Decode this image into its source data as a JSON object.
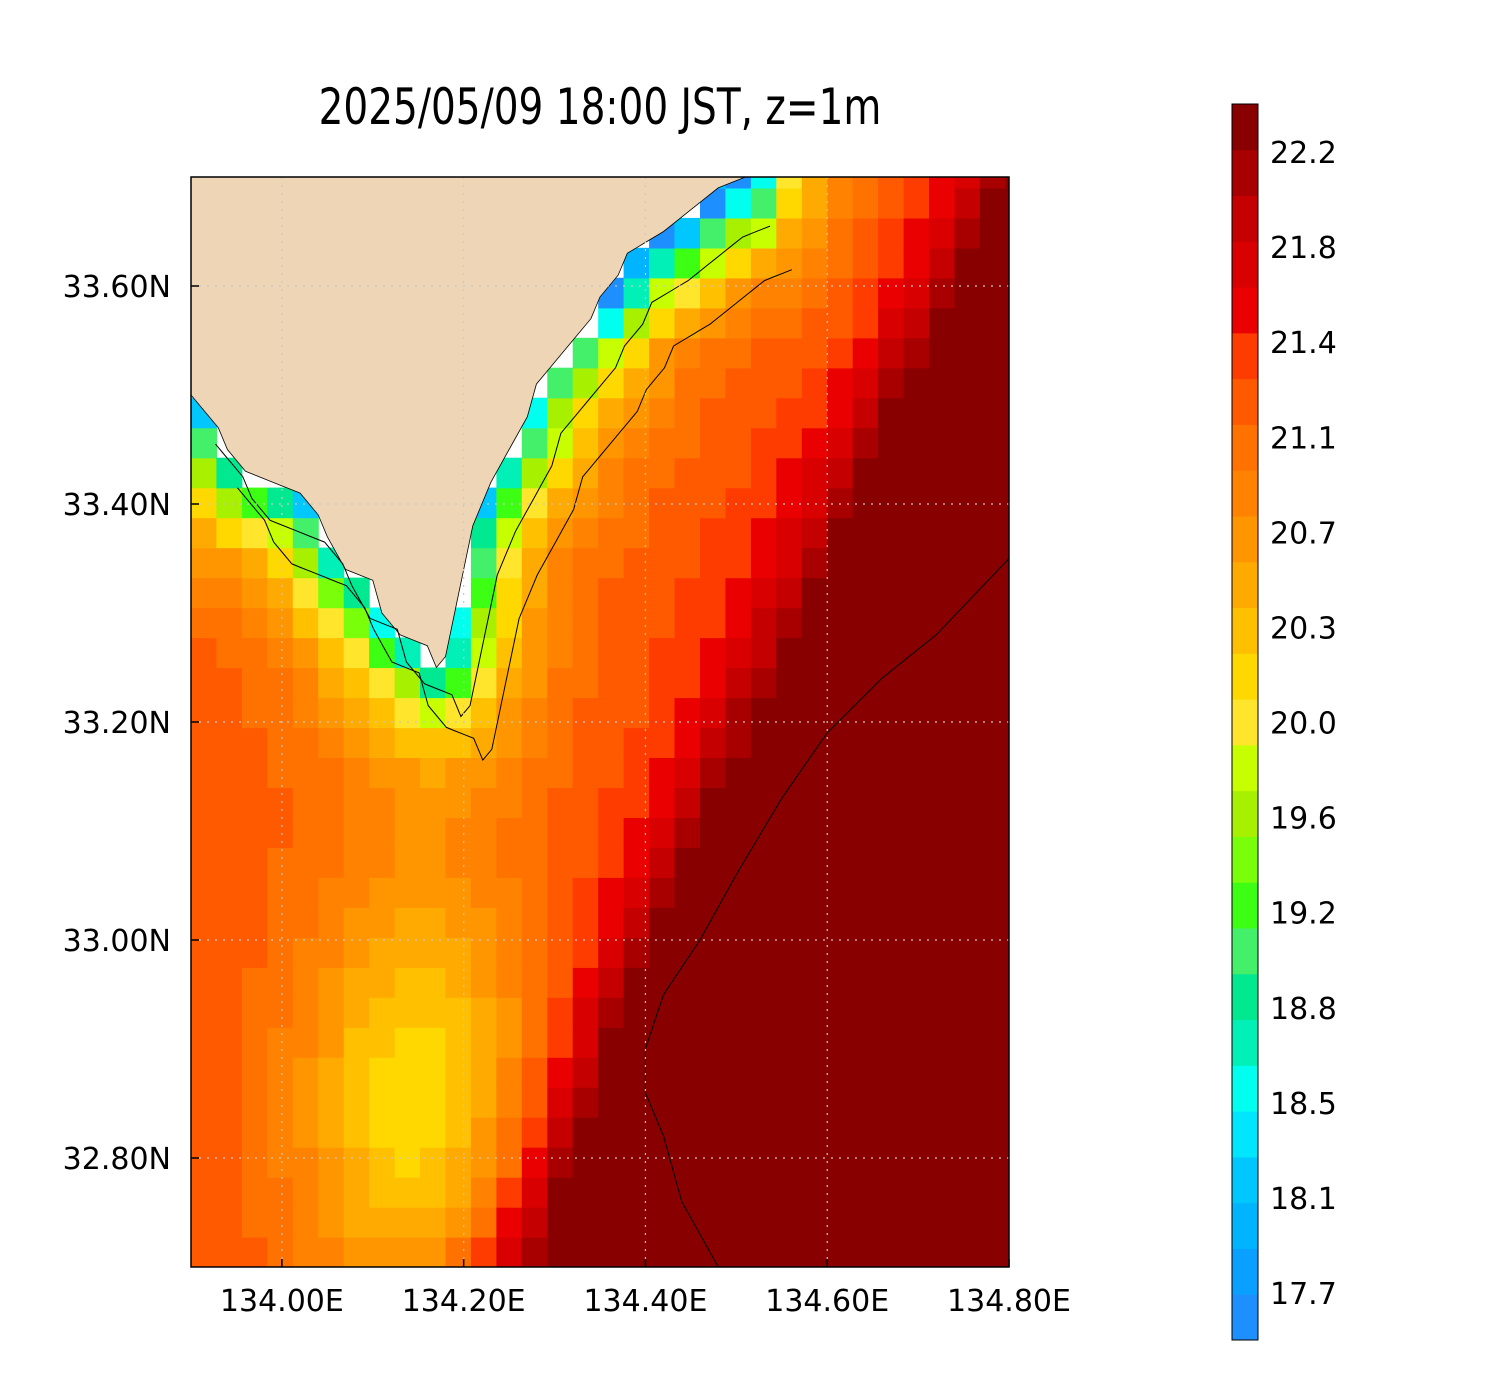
{
  "title": "2025/05/09 18:00 JST, z=1m",
  "chart_data": {
    "type": "heatmap",
    "title": "2025/05/09 18:00 JST, z=1m",
    "xlabel": "",
    "ylabel": "",
    "xlim": [
      133.9,
      134.8
    ],
    "ylim": [
      32.7,
      33.7
    ],
    "x_ticks": [
      "134.00E",
      "134.20E",
      "134.40E",
      "134.60E",
      "134.80E"
    ],
    "y_ticks": [
      "32.80N",
      "33.00N",
      "33.20N",
      "33.40N",
      "33.60N"
    ],
    "grid": true,
    "colorbar": {
      "placement": "right",
      "range": [
        17.5,
        22.4
      ],
      "tick_labels": [
        "17.7",
        "18.1",
        "18.5",
        "18.8",
        "19.2",
        "19.6",
        "20.0",
        "20.3",
        "20.7",
        "21.1",
        "21.4",
        "21.8",
        "22.2"
      ],
      "colors": [
        "#1e8fff",
        "#0aa0ff",
        "#00b4ff",
        "#00c8ff",
        "#00e6ff",
        "#00ffee",
        "#00f0b8",
        "#00e890",
        "#44f06a",
        "#3cff14",
        "#7aff0a",
        "#a6f000",
        "#c8ff00",
        "#ffe62c",
        "#ffd800",
        "#ffc000",
        "#ffaa00",
        "#ff9600",
        "#ff8200",
        "#ff7200",
        "#ff5a00",
        "#ff3c00",
        "#ea0000",
        "#d80000",
        "#c40000",
        "#a80000",
        "#880000"
      ]
    },
    "field": {
      "description_levels": "temperature in degC on a 0.035 x 0.0333 deg grid, null = land",
      "note": "generated procedurally",
      "land_color": "#edd5b5",
      "contour_levels": [
        19.4,
        20.3,
        21.4,
        22.3
      ]
    }
  }
}
